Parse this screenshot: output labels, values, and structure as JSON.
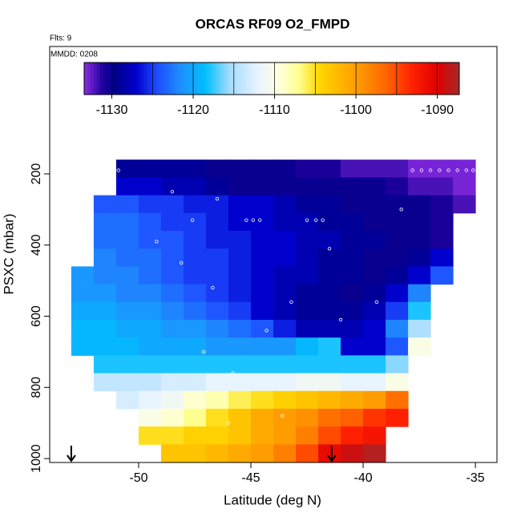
{
  "chart_data": {
    "type": "heatmap",
    "title": "ORCAS RF09 O2_FMPD",
    "subtitle": "Flts: 9",
    "annotation": "MMDD: 0208",
    "xlabel": "Latitude (deg N)",
    "ylabel": "PSXC (mbar)",
    "xlim": [
      -53.96,
      -34.04
    ],
    "ylim": [
      -158,
      1011
    ],
    "xticks": [
      -50,
      -45,
      -40,
      -35
    ],
    "yticks": [
      200,
      400,
      600,
      800,
      1000
    ],
    "x_bins": [
      -53,
      -52,
      -51,
      -50,
      -49,
      -48,
      -47,
      -46,
      -45,
      -44,
      -43,
      -42,
      -41,
      -40,
      -39,
      -38,
      -37,
      -36,
      -35
    ],
    "y_bins": [
      160,
      210,
      260,
      310,
      360,
      410,
      460,
      510,
      560,
      610,
      660,
      710,
      760,
      810,
      860,
      910,
      960,
      1010
    ],
    "values": [
      [
        null,
        null,
        -1129,
        -1129,
        -1129,
        -1129,
        -1130,
        -1130,
        -1130,
        -1130,
        -1131,
        -1131,
        -1132,
        -1132,
        -1132,
        -1133,
        -1133,
        -1133
      ],
      [
        null,
        null,
        -1127,
        -1127,
        -1128,
        -1128,
        -1129,
        -1130,
        -1130,
        -1130,
        -1130,
        -1130,
        -1130,
        -1130,
        -1131,
        -1132,
        -1132,
        -1133
      ],
      [
        null,
        -1124,
        -1124,
        -1125,
        -1125,
        -1126,
        -1126,
        -1127,
        -1127,
        -1128,
        -1129,
        -1129,
        -1130,
        -1130,
        -1130,
        -1130,
        -1131,
        -1132
      ],
      [
        null,
        -1123,
        -1123,
        -1124,
        -1125,
        -1125,
        -1126,
        -1127,
        -1127,
        -1128,
        -1128,
        -1129,
        -1129,
        -1130,
        -1130,
        -1130,
        -1131,
        null
      ],
      [
        null,
        -1123,
        -1123,
        -1124,
        -1124,
        -1125,
        -1126,
        -1126,
        -1127,
        -1127,
        -1128,
        -1128,
        -1129,
        -1129,
        -1130,
        -1130,
        -1131,
        null
      ],
      [
        null,
        -1122,
        -1123,
        -1123,
        -1124,
        -1125,
        -1125,
        -1126,
        -1127,
        -1127,
        -1128,
        -1129,
        -1129,
        -1130,
        -1130,
        -1129,
        -1127,
        null
      ],
      [
        -1121,
        -1122,
        -1122,
        -1123,
        -1124,
        -1125,
        -1125,
        -1126,
        -1127,
        -1128,
        -1128,
        -1129,
        -1129,
        -1130,
        -1129,
        -1127,
        -1124,
        null
      ],
      [
        -1121,
        -1121,
        -1122,
        -1122,
        -1123,
        -1124,
        -1125,
        -1126,
        -1127,
        -1128,
        -1129,
        -1129,
        -1130,
        -1129,
        -1127,
        -1122,
        null,
        null
      ],
      [
        -1120,
        -1120,
        -1121,
        -1121,
        -1122,
        -1123,
        -1124,
        -1125,
        -1127,
        -1128,
        -1129,
        -1129,
        -1129,
        -1128,
        -1125,
        -1118,
        null,
        null
      ],
      [
        -1119,
        -1119,
        -1120,
        -1120,
        -1121,
        -1121,
        -1122,
        -1123,
        -1124,
        -1126,
        -1128,
        -1128,
        -1128,
        -1127,
        -1122,
        -1115,
        null,
        null
      ],
      [
        -1119,
        -1119,
        -1119,
        -1120,
        -1120,
        -1120,
        -1121,
        -1121,
        -1121,
        -1121,
        -1119,
        -1118,
        -1127,
        -1127,
        -1124,
        -1110,
        null,
        null
      ],
      [
        null,
        -1118,
        -1118,
        -1118,
        -1118,
        -1118,
        -1118,
        -1118,
        -1118,
        -1118,
        -1118,
        -1118,
        -1118,
        -1118,
        -1116,
        null,
        null,
        null
      ],
      [
        null,
        -1114,
        -1114,
        -1114,
        -1113,
        -1113,
        -1112,
        -1112,
        -1112,
        -1112,
        -1111,
        -1111,
        -1112,
        -1112,
        -1110,
        null,
        null,
        null
      ],
      [
        null,
        null,
        -1113,
        -1112,
        -1111,
        -1109,
        -1108,
        -1106,
        -1105,
        -1104,
        -1103,
        -1102,
        -1101,
        -1100,
        -1097,
        null,
        null,
        null
      ],
      [
        null,
        null,
        null,
        -1110,
        -1109,
        -1107,
        -1105,
        -1103,
        -1101,
        -1100,
        -1099,
        -1097,
        -1096,
        -1094,
        -1093,
        null,
        null,
        null
      ],
      [
        null,
        null,
        null,
        -1105,
        -1105,
        -1104,
        -1104,
        -1103,
        -1101,
        -1100,
        -1098,
        -1095,
        -1093,
        -1092,
        null,
        null,
        null,
        null
      ],
      [
        null,
        null,
        null,
        null,
        -1103,
        -1103,
        -1102,
        -1101,
        -1100,
        -1098,
        -1095,
        -1091,
        -1089,
        -1088,
        null,
        null,
        null,
        null
      ]
    ],
    "points": {
      "x": [
        -51.1,
        -50.9,
        -48.5,
        -46.5,
        -47.6,
        -49.2,
        -45.2,
        -44.9,
        -44.6,
        -42.5,
        -42.1,
        -41.8,
        -48.1,
        -46.7,
        -43.2,
        -41.0,
        -44.3,
        -47.1,
        -39.4,
        -45.8,
        -48.9,
        -43.6,
        -37.8,
        -37.4,
        -37.0,
        -36.6,
        -36.2,
        -35.8,
        -35.4,
        -35.1,
        -38.3,
        -41.5,
        -46.0,
        -49.5
      ],
      "y": [
        190,
        190,
        250,
        270,
        330,
        390,
        330,
        330,
        330,
        330,
        330,
        330,
        450,
        520,
        560,
        610,
        640,
        700,
        560,
        760,
        850,
        880,
        190,
        190,
        190,
        190,
        190,
        190,
        190,
        190,
        300,
        410,
        900,
        970
      ]
    },
    "arrows_x": [
      -53.0,
      -41.4
    ],
    "colorbar": {
      "lim": [
        -1133.4,
        -1087.3
      ],
      "ticks": [
        -1130,
        -1120,
        -1110,
        -1100,
        -1090
      ],
      "lines": [
        -1130,
        -1125,
        -1120,
        -1115,
        -1110,
        -1105,
        -1100,
        -1095,
        -1090
      ],
      "stops": [
        [
          -1133.4,
          "#8a2be2"
        ],
        [
          -1131,
          "#1a0099"
        ],
        [
          -1129.5,
          "#00008b"
        ],
        [
          -1127,
          "#0000cd"
        ],
        [
          -1124.5,
          "#1e4bff"
        ],
        [
          -1121.5,
          "#1e90ff"
        ],
        [
          -1118.5,
          "#00bfff"
        ],
        [
          -1115.5,
          "#a5dcff"
        ],
        [
          -1112,
          "#e8f4ff"
        ],
        [
          -1109.5,
          "#ffffe0"
        ],
        [
          -1107,
          "#ffff90"
        ],
        [
          -1104.5,
          "#ffd700"
        ],
        [
          -1101.5,
          "#ffb000"
        ],
        [
          -1099,
          "#ff9000"
        ],
        [
          -1096,
          "#ff6000"
        ],
        [
          -1093,
          "#ff2000"
        ],
        [
          -1090,
          "#e00000"
        ],
        [
          -1087.3,
          "#a52a2a"
        ]
      ]
    }
  }
}
